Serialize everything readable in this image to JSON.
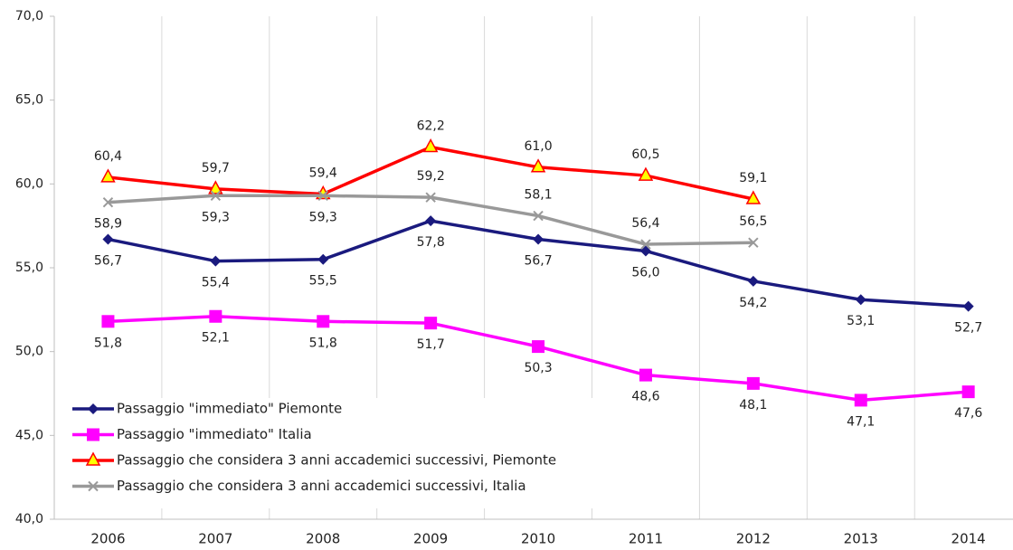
{
  "chart_data": {
    "type": "line",
    "categories": [
      "2006",
      "2007",
      "2008",
      "2009",
      "2010",
      "2011",
      "2012",
      "2013",
      "2014"
    ],
    "series": [
      {
        "name": "Passaggio \"immediato\" Piemonte",
        "color": "#1a1a7e",
        "marker": "diamond",
        "values": [
          56.7,
          55.4,
          55.5,
          57.8,
          56.7,
          56.0,
          54.2,
          53.1,
          52.7
        ],
        "value_labels": [
          "56,7",
          "55,4",
          "55,5",
          "57,8",
          "56,7",
          "56,0",
          "54,2",
          "53,1",
          "52,7"
        ]
      },
      {
        "name": "Passaggio \"immediato\" Italia",
        "color": "#ff00ff",
        "marker": "square",
        "values": [
          51.8,
          52.1,
          51.8,
          51.7,
          50.3,
          48.6,
          48.1,
          47.1,
          47.6
        ],
        "value_labels": [
          "51,8",
          "52,1",
          "51,8",
          "51,7",
          "50,3",
          "48,6",
          "48,1",
          "47,1",
          "47,6"
        ]
      },
      {
        "name": "Passaggio che considera 3 anni accademici successivi, Piemonte",
        "color": "#ff0000",
        "marker": "triangle",
        "values": [
          60.4,
          59.7,
          59.4,
          62.2,
          61.0,
          60.5,
          59.1,
          null,
          null
        ],
        "value_labels": [
          "60,4",
          "59,7",
          "59,4",
          "62,2",
          "61,0",
          "60,5",
          "59,1",
          null,
          null
        ]
      },
      {
        "name": "Passaggio che considera 3 anni accademici successivi, Italia",
        "color": "#999999",
        "marker": "x",
        "values": [
          58.9,
          59.3,
          59.3,
          59.2,
          58.1,
          56.4,
          56.5,
          null,
          null
        ],
        "value_labels": [
          "58,9",
          "59,3",
          "59,3",
          "59,2",
          "58,1",
          "56,4",
          "56,5",
          null,
          null
        ]
      }
    ],
    "ylim": [
      40,
      70
    ],
    "yticks": [
      {
        "value": 40,
        "label": "40,0"
      },
      {
        "value": 45,
        "label": "45,0"
      },
      {
        "value": 50,
        "label": "50,0"
      },
      {
        "value": 55,
        "label": "55,0"
      },
      {
        "value": 60,
        "label": "60,0"
      },
      {
        "value": 65,
        "label": "65,0"
      },
      {
        "value": 70,
        "label": "70,0"
      }
    ],
    "legend": "lower left"
  }
}
